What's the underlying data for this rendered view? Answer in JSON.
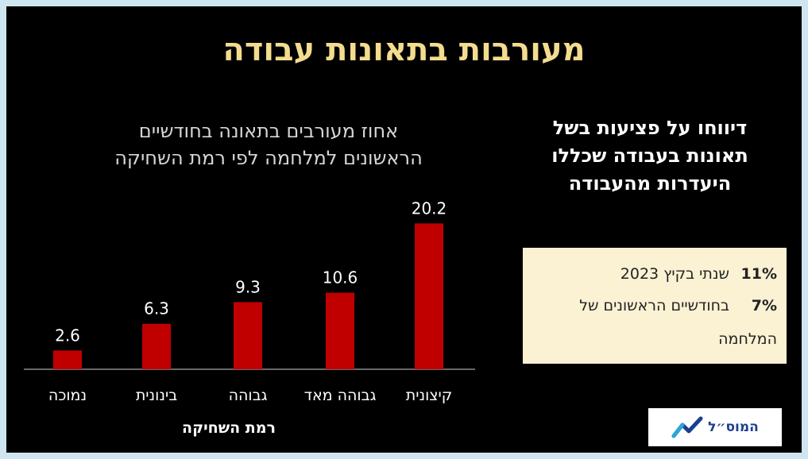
{
  "slide_title": "מעורבות בתאונות עבודה",
  "chart_data": {
    "type": "bar",
    "title_lines": [
      "אחוז מעורבים בתאונה בחודשיים",
      "הראשונים למלחמה לפי רמת השחיקה"
    ],
    "categories": [
      "קיצונית",
      "גבוהה מאד",
      "גבוהה",
      "בינונית",
      "נמוכה"
    ],
    "values": [
      20.2,
      10.6,
      9.3,
      6.3,
      2.6
    ],
    "value_labels": [
      "20.2",
      "10.6",
      "9.3",
      "6.3",
      "2.6"
    ],
    "xlabel": "רמת השחיקה",
    "ylabel": "",
    "ylim": [
      0,
      22
    ],
    "bar_color": "#c00000",
    "grid": false
  },
  "report": {
    "heading_lines": [
      "דיווחו על פציעות בשל",
      "תאונות בעבודה שכללו",
      "היעדרות מהעבודה"
    ],
    "stats": [
      {
        "pct": "11%",
        "text": "שנתי בקיץ 2023"
      },
      {
        "pct": "7%",
        "text": "בחודשיים הראשונים של",
        "text_cont": "המלחמה"
      }
    ],
    "box_color": "#fbf1d3"
  },
  "logo": {
    "text": "המוס״ל",
    "icon": "ascending-line-logo-icon"
  },
  "colors": {
    "title": "#f3dc8e",
    "background": "#000000",
    "bar": "#c00000"
  }
}
